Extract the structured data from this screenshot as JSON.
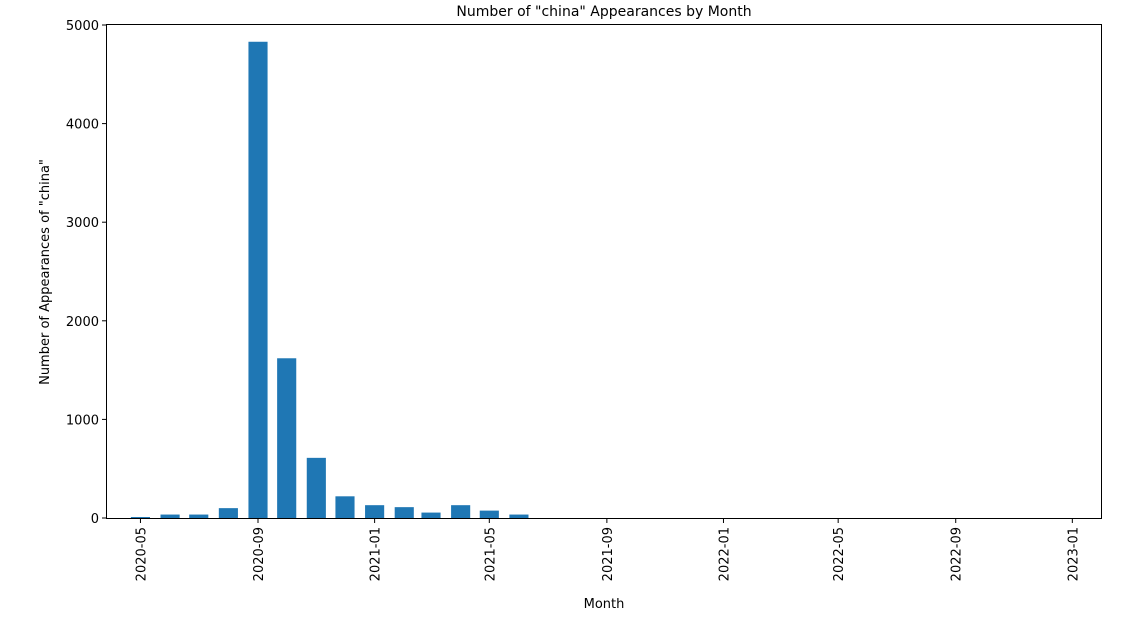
{
  "chart_data": {
    "type": "bar",
    "title": "Number of \"china\" Appearances by Month",
    "xlabel": "Month",
    "ylabel": "Number of Appearances of \"china\"",
    "ylim": [
      0,
      5000
    ],
    "xlim": [
      "2020-03-27",
      "2023-01-31"
    ],
    "y_ticks": [
      0,
      1000,
      2000,
      3000,
      4000,
      5000
    ],
    "x_ticks": [
      "2020-05",
      "2020-09",
      "2021-01",
      "2021-05",
      "2021-09",
      "2022-01",
      "2022-05",
      "2022-09",
      "2023-01"
    ],
    "grid": false,
    "color": "#1f77b4",
    "categories": [
      "2020-04",
      "2020-05",
      "2020-06",
      "2020-07",
      "2020-08",
      "2020-09",
      "2020-10",
      "2020-11",
      "2020-12",
      "2021-01",
      "2021-02",
      "2021-03",
      "2021-04",
      "2021-05",
      "2021-06",
      "2021-07",
      "2021-08",
      "2021-09",
      "2021-10",
      "2021-11",
      "2021-12",
      "2022-01",
      "2022-02",
      "2022-03",
      "2022-04",
      "2022-05",
      "2022-06",
      "2022-07",
      "2022-08",
      "2022-09",
      "2022-10",
      "2022-11",
      "2022-12",
      "2023-01"
    ],
    "values": [
      0,
      10,
      35,
      35,
      100,
      4830,
      1620,
      610,
      220,
      130,
      110,
      55,
      130,
      75,
      35,
      0,
      0,
      0,
      0,
      0,
      0,
      0,
      0,
      0,
      0,
      0,
      0,
      0,
      0,
      0,
      0,
      0,
      0,
      0
    ]
  }
}
